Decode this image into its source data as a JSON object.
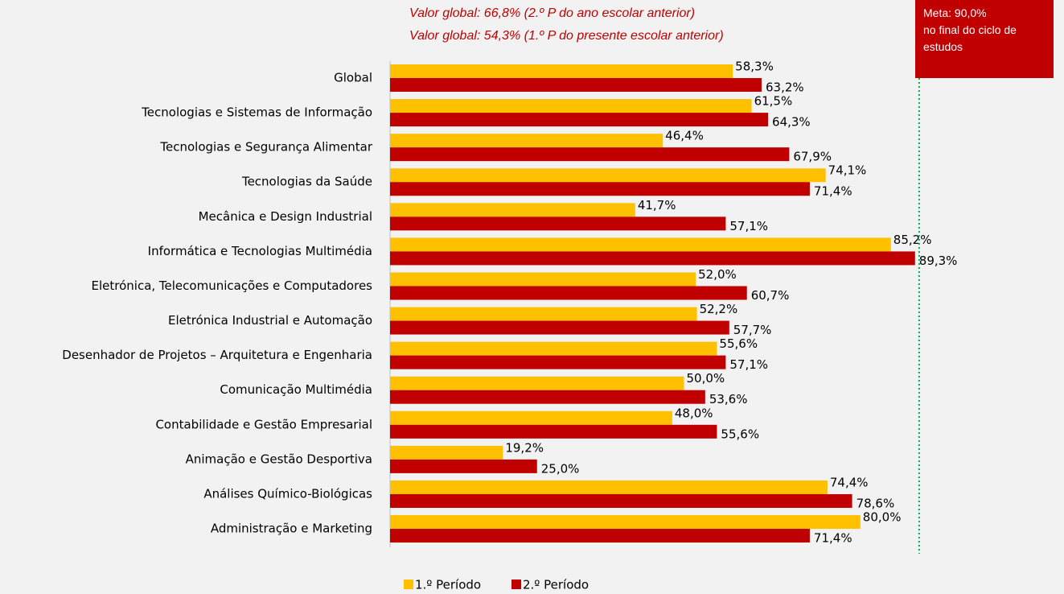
{
  "chart_data": {
    "type": "hbar",
    "annotations": [
      "Valor global: 66,8% (2.º P do ano escolar anterior)",
      "Valor global: 54,3% (1.º P do presente escolar anterior)"
    ],
    "target": {
      "value": 90,
      "label": "Meta: 90,0%",
      "text": "no final do ciclo de estudos"
    },
    "categories": [
      "Global",
      "Tecnologias e Sistemas de Informação",
      "Tecnologias e Segurança Alimentar",
      "Tecnologias da Saúde",
      "Mecânica e Design Industrial",
      "Informática e Tecnologias Multimédia",
      "Eletrónica, Telecomunicações e Computadores",
      "Eletrónica Industrial e Automação",
      "Desenhador de Projetos – Arquitetura e Engenharia",
      "Comunicação Multimédia",
      "Contabilidade e Gestão Empresarial",
      "Animação e Gestão Desportiva",
      "Análises Químico-Biológicas",
      "Administração e Marketing"
    ],
    "series": [
      {
        "name": "1.º Período",
        "color": "#ffc000",
        "values": [
          58.3,
          61.5,
          46.4,
          74.1,
          41.7,
          85.2,
          52.0,
          52.2,
          55.6,
          50.0,
          48.0,
          19.2,
          74.4,
          80.0
        ],
        "value_labels": [
          "58,3%",
          "61,5%",
          "46,4%",
          "74,1%",
          "41,7%",
          "85,2%",
          "52,0%",
          "52,2%",
          "55,6%",
          "50,0%",
          "48,0%",
          "19,2%",
          "74,4%",
          "80,0%"
        ]
      },
      {
        "name": "2.º Período",
        "color": "#c00000",
        "values": [
          63.2,
          64.3,
          67.9,
          71.4,
          57.1,
          89.3,
          60.7,
          57.7,
          57.1,
          53.6,
          55.6,
          25.0,
          78.6,
          71.4
        ],
        "value_labels": [
          "63,2%",
          "64,3%",
          "67,9%",
          "71,4%",
          "57,1%",
          "89,3%",
          "60,7%",
          "57,7%",
          "57,1%",
          "53,6%",
          "55,6%",
          "25,0%",
          "78,6%",
          "71,4%"
        ]
      }
    ],
    "xlim": [
      0,
      100
    ],
    "legend": "bottom"
  }
}
